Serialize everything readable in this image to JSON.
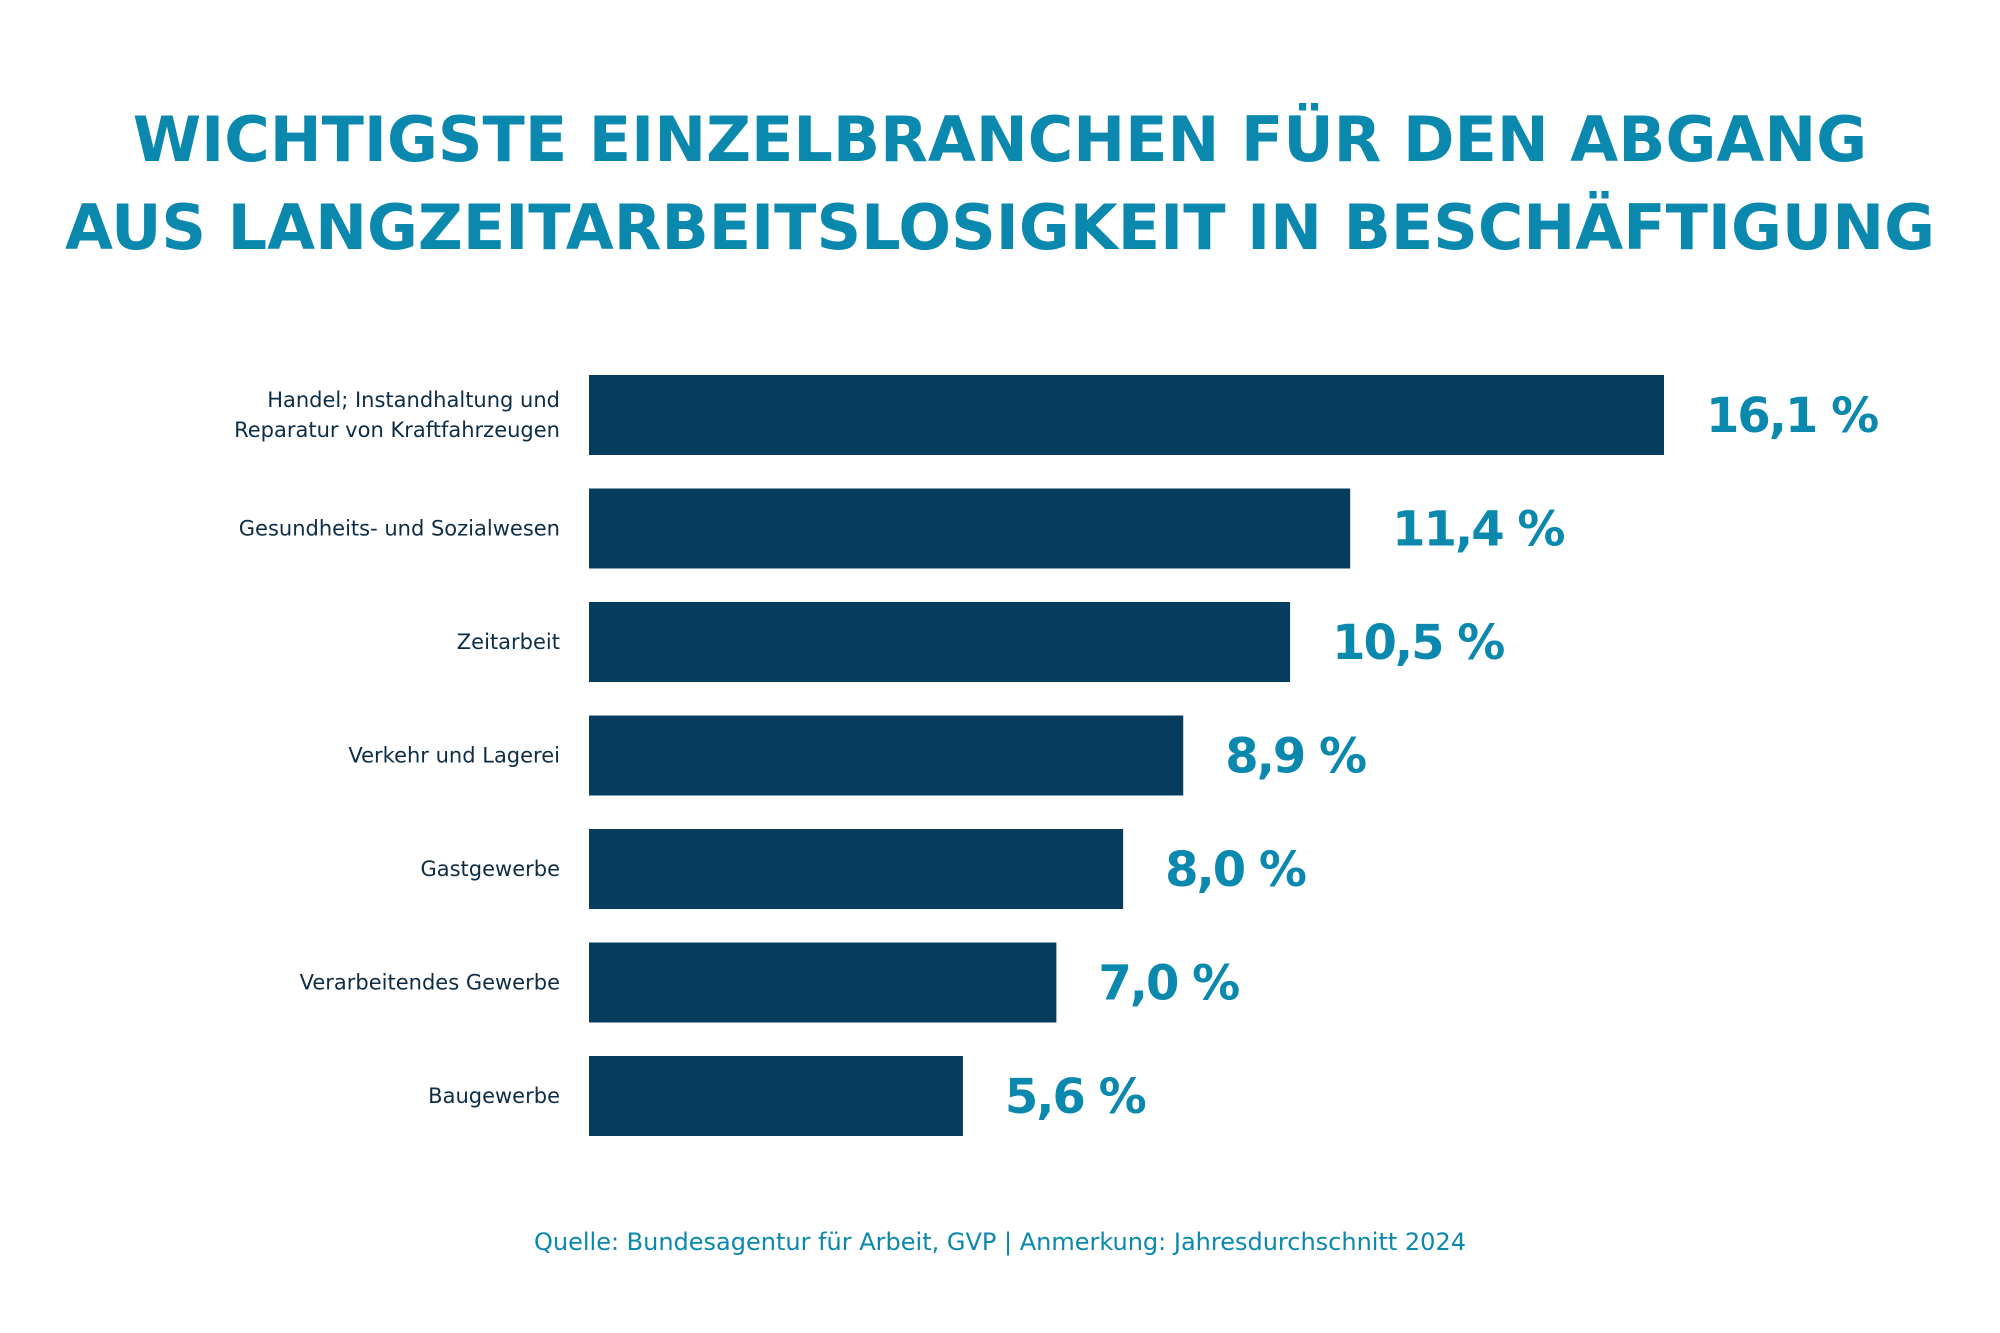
{
  "title": {
    "line1": "WICHTIGSTE EINZELBRANCHEN FÜR DEN ABGANG",
    "line2": "AUS LANGZEITARBEITSLOSIGKEIT IN BESCHÄFTIGUNG"
  },
  "colors": {
    "bar": "#063d5f",
    "accent": "#0a88ad",
    "label": "#0d2d47"
  },
  "chart_data": {
    "type": "bar",
    "orientation": "horizontal",
    "title": "WICHTIGSTE EINZELBRANCHEN FÜR DEN ABGANG AUS LANGZEITARBEITSLOSIGKEIT IN BESCHÄFTIGUNG",
    "categories": [
      [
        "Handel; Instandhaltung und",
        "Reparatur von Kraftfahrzeugen"
      ],
      [
        "Gesundheits- und Sozialwesen"
      ],
      [
        "Zeitarbeit"
      ],
      [
        "Verkehr und Lagerei"
      ],
      [
        "Gastgewerbe"
      ],
      [
        "Verarbeitendes Gewerbe"
      ],
      [
        "Baugewerbe"
      ]
    ],
    "values": [
      16.1,
      11.4,
      10.5,
      8.9,
      8.0,
      7.0,
      5.6
    ],
    "value_labels": [
      "16,1 %",
      "11,4 %",
      "10,5 %",
      "8,9 %",
      "8,0 %",
      "7,0 %",
      "5,6 %"
    ],
    "unit": "%",
    "xlim": [
      0,
      16.1
    ],
    "grid": false,
    "legend": "none"
  },
  "source": "Quelle: Bundesagentur für Arbeit, GVP | Anmerkung: Jahresdurchschnitt 2024"
}
